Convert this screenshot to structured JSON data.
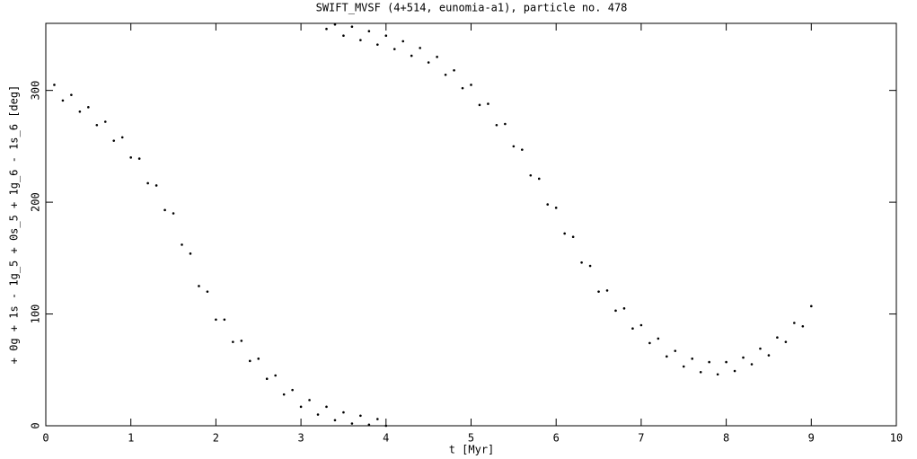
{
  "chart_data": {
    "type": "scatter",
    "title": "SWIFT_MVSF (4+514, eunomia-a1), particle no. 478",
    "x_label": "t [Myr]",
    "y_label": "+ 0g + 1s - 1g_5 + 0s_5 + 1g_6 - 1s_6 [deg]",
    "color": "#000000",
    "xlim": [
      0,
      10
    ],
    "xticks": [
      0,
      1,
      2,
      3,
      4,
      5,
      6,
      7,
      8,
      9,
      10
    ],
    "ylim": [
      0,
      360
    ],
    "yticks": [
      0,
      100,
      200,
      300
    ],
    "grid": false,
    "x": [
      0.1,
      0.2,
      0.3,
      0.4,
      0.5,
      0.6,
      0.7,
      0.8,
      0.9,
      1.0,
      1.1,
      1.2,
      1.3,
      1.4,
      1.5,
      1.6,
      1.7,
      1.8,
      1.9,
      2.0,
      2.1,
      2.2,
      2.3,
      2.4,
      2.5,
      2.6,
      2.7,
      2.8,
      2.9,
      3.0,
      3.1,
      3.2,
      3.3,
      3.4,
      3.5,
      3.6,
      3.7,
      3.8,
      3.9,
      4.0,
      3.3,
      3.4,
      3.5,
      3.6,
      3.7,
      3.8,
      3.9,
      4.0,
      4.1,
      4.2,
      4.3,
      4.4,
      4.5,
      4.6,
      4.7,
      4.8,
      4.9,
      5.0,
      5.1,
      5.2,
      5.3,
      5.4,
      5.5,
      5.6,
      5.7,
      5.8,
      5.9,
      6.0,
      6.1,
      6.2,
      6.3,
      6.4,
      6.5,
      6.6,
      6.7,
      6.8,
      6.9,
      7.0,
      7.1,
      7.2,
      7.3,
      7.4,
      7.5,
      7.6,
      7.7,
      7.8,
      7.9,
      8.0,
      8.1,
      8.2,
      8.3,
      8.4,
      8.5,
      8.6,
      8.7,
      8.8,
      8.9,
      9.0
    ],
    "values": [
      305,
      291,
      296,
      281,
      285,
      269,
      272,
      255,
      258,
      240,
      239,
      217,
      215,
      193,
      190,
      162,
      154,
      125,
      120,
      95,
      95,
      75,
      76,
      58,
      60,
      42,
      45,
      28,
      32,
      17,
      23,
      10,
      17,
      5,
      12,
      2,
      9,
      1,
      6,
      0,
      355,
      359,
      349,
      357,
      345,
      353,
      341,
      349,
      337,
      344,
      331,
      338,
      325,
      330,
      314,
      318,
      302,
      305,
      287,
      288,
      269,
      270,
      250,
      247,
      224,
      221,
      198,
      195,
      172,
      169,
      146,
      143,
      120,
      121,
      103,
      105,
      87,
      90,
      74,
      78,
      62,
      67,
      53,
      60,
      48,
      57,
      46,
      57,
      49,
      61,
      55,
      69,
      63,
      79,
      75,
      92,
      89,
      107
    ]
  }
}
